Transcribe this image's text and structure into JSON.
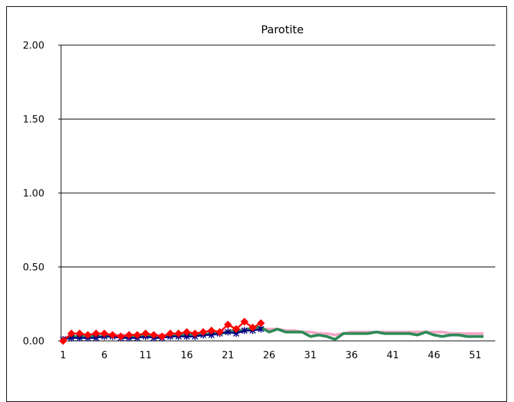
{
  "chart_data": {
    "type": "line",
    "title": "Parotite",
    "xlabel": "",
    "ylabel": "",
    "ylim": [
      0,
      2
    ],
    "xlim": [
      1,
      52
    ],
    "yticks": [
      "2.00",
      "1.50",
      "1.00",
      "0.50",
      "0.00"
    ],
    "ytick_values": [
      2.0,
      1.5,
      1.0,
      0.5,
      0.0
    ],
    "xticks": [
      "1",
      "6",
      "11",
      "16",
      "21",
      "26",
      "31",
      "36",
      "41",
      "46",
      "51"
    ],
    "xtick_values": [
      1,
      6,
      11,
      16,
      21,
      26,
      31,
      36,
      41,
      46,
      51
    ],
    "grid": true,
    "series": [
      {
        "color": "#f4a6c8",
        "marker": "none",
        "x": [
          1,
          2,
          3,
          4,
          5,
          6,
          7,
          8,
          9,
          10,
          11,
          12,
          13,
          14,
          15,
          16,
          17,
          18,
          19,
          20,
          21,
          22,
          23,
          24,
          25,
          26,
          27,
          28,
          29,
          30,
          31,
          32,
          33,
          34,
          35,
          36,
          37,
          38,
          39,
          40,
          41,
          42,
          43,
          44,
          45,
          46,
          47,
          48,
          49,
          50,
          51,
          52
        ],
        "values": [
          0.02,
          0.03,
          0.03,
          0.04,
          0.04,
          0.04,
          0.04,
          0.04,
          0.04,
          0.04,
          0.04,
          0.04,
          0.04,
          0.04,
          0.05,
          0.05,
          0.05,
          0.05,
          0.06,
          0.06,
          0.07,
          0.07,
          0.08,
          0.08,
          0.08,
          0.08,
          0.08,
          0.07,
          0.07,
          0.06,
          0.06,
          0.05,
          0.05,
          0.04,
          0.05,
          0.06,
          0.06,
          0.06,
          0.06,
          0.06,
          0.06,
          0.06,
          0.06,
          0.06,
          0.06,
          0.06,
          0.06,
          0.05,
          0.05,
          0.05,
          0.05,
          0.05
        ]
      },
      {
        "color": "#2e8b57",
        "marker": "none",
        "x": [
          1,
          2,
          3,
          4,
          5,
          6,
          7,
          8,
          9,
          10,
          11,
          12,
          13,
          14,
          15,
          16,
          17,
          18,
          19,
          20,
          21,
          22,
          23,
          24,
          25,
          26,
          27,
          28,
          29,
          30,
          31,
          32,
          33,
          34,
          35,
          36,
          37,
          38,
          39,
          40,
          41,
          42,
          43,
          44,
          45,
          46,
          47,
          48,
          49,
          50,
          51,
          52
        ],
        "values": [
          0.01,
          0.03,
          0.03,
          0.03,
          0.03,
          0.03,
          0.03,
          0.03,
          0.03,
          0.03,
          0.03,
          0.03,
          0.03,
          0.03,
          0.04,
          0.04,
          0.05,
          0.04,
          0.05,
          0.05,
          0.06,
          0.07,
          0.07,
          0.09,
          0.09,
          0.06,
          0.08,
          0.06,
          0.06,
          0.06,
          0.03,
          0.04,
          0.03,
          0.01,
          0.05,
          0.05,
          0.05,
          0.05,
          0.06,
          0.05,
          0.05,
          0.05,
          0.05,
          0.04,
          0.06,
          0.04,
          0.03,
          0.04,
          0.04,
          0.03,
          0.03,
          0.03
        ]
      },
      {
        "color": "#000080",
        "marker": "star",
        "x": [
          1,
          2,
          3,
          4,
          5,
          6,
          7,
          8,
          9,
          10,
          11,
          12,
          13,
          14,
          15,
          16,
          17,
          18,
          19,
          20,
          21,
          22,
          23,
          24,
          25
        ],
        "values": [
          0.01,
          0.02,
          0.02,
          0.02,
          0.02,
          0.03,
          0.03,
          0.02,
          0.02,
          0.02,
          0.03,
          0.02,
          0.02,
          0.03,
          0.03,
          0.03,
          0.03,
          0.04,
          0.04,
          0.05,
          0.06,
          0.05,
          0.07,
          0.07,
          0.08
        ]
      },
      {
        "color": "#ff0000",
        "marker": "diamond",
        "x": [
          1,
          2,
          3,
          4,
          5,
          6,
          7,
          8,
          9,
          10,
          11,
          12,
          13,
          14,
          15,
          16,
          17,
          18,
          19,
          20,
          21,
          22,
          23,
          24,
          25
        ],
        "values": [
          0.0,
          0.05,
          0.05,
          0.04,
          0.05,
          0.05,
          0.04,
          0.03,
          0.04,
          0.04,
          0.05,
          0.04,
          0.03,
          0.05,
          0.05,
          0.06,
          0.05,
          0.06,
          0.07,
          0.06,
          0.11,
          0.08,
          0.13,
          0.09,
          0.12
        ]
      }
    ]
  }
}
